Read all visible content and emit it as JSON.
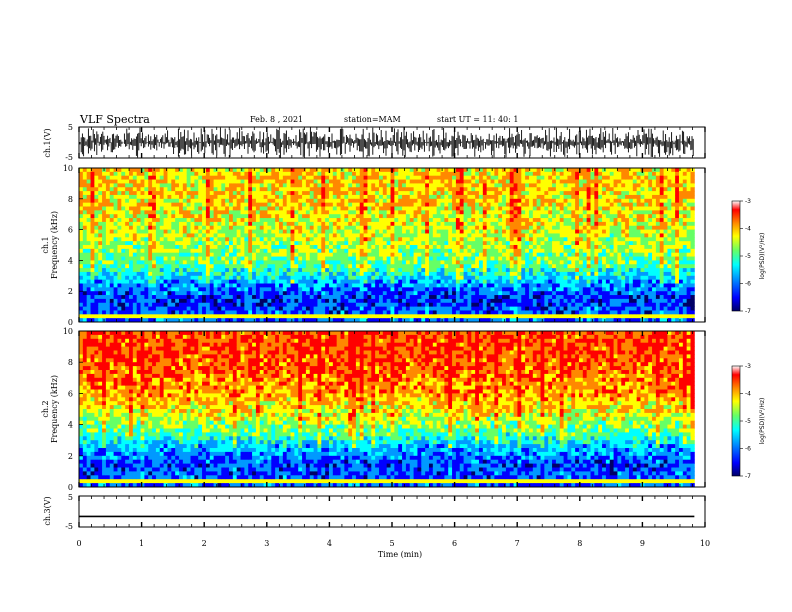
{
  "header": {
    "title": "VLF Spectra",
    "date": "Feb. 8 , 2021",
    "station": "station=MAM",
    "start": "start UT =  11: 40: 1"
  },
  "colors": {
    "scale": [
      "#000066",
      "#0000ff",
      "#0099ff",
      "#00ffff",
      "#66ff66",
      "#ffff00",
      "#ff8800",
      "#ff0000",
      "#ffffff"
    ]
  },
  "chart_data": [
    {
      "type": "line",
      "panel": "ch1-waveform",
      "ylabel": "ch.1(V)",
      "ylim": [
        -5,
        5
      ],
      "y_ticks": [
        "5",
        "-5"
      ],
      "description_values": "dense impulsive waveform between -5 and 5 V across 0-9.8 min"
    },
    {
      "type": "heatmap",
      "panel": "ch1-spectrogram",
      "ylabel": "Frequency (kHz)",
      "channel_label": "ch.1",
      "xlim": [
        0,
        10
      ],
      "ylim": [
        0,
        10
      ],
      "y_ticks": [
        "0",
        "2",
        "4",
        "6",
        "8",
        "10"
      ],
      "data_extent_min": 9.83,
      "profile": [
        {
          "f_khz": 0.5,
          "log_psd": -6.0
        },
        {
          "f_khz": 1.5,
          "log_psd": -6.2
        },
        {
          "f_khz": 2.5,
          "log_psd": -5.7
        },
        {
          "f_khz": 3.5,
          "log_psd": -5.0
        },
        {
          "f_khz": 4.5,
          "log_psd": -4.6
        },
        {
          "f_khz": 5.5,
          "log_psd": -4.5
        },
        {
          "f_khz": 6.5,
          "log_psd": -4.3
        },
        {
          "f_khz": 7.5,
          "log_psd": -4.2
        },
        {
          "f_khz": 8.5,
          "log_psd": -4.1
        },
        {
          "f_khz": 9.5,
          "log_psd": -4.1
        }
      ],
      "colorbar": {
        "label": "log(PSD)(V²/Hz)",
        "range": [
          -7,
          -3
        ],
        "ticks": [
          "-3",
          "-4",
          "-5",
          "-6",
          "-7"
        ]
      }
    },
    {
      "type": "heatmap",
      "panel": "ch2-spectrogram",
      "ylabel": "Frequency (kHz)",
      "channel_label": "ch.2",
      "xlim": [
        0,
        10
      ],
      "ylim": [
        0,
        10
      ],
      "y_ticks": [
        "0",
        "2",
        "4",
        "6",
        "8",
        "10"
      ],
      "data_extent_min": 9.83,
      "profile": [
        {
          "f_khz": 0.5,
          "log_psd": -6.0
        },
        {
          "f_khz": 1.5,
          "log_psd": -6.1
        },
        {
          "f_khz": 2.5,
          "log_psd": -5.6
        },
        {
          "f_khz": 3.5,
          "log_psd": -4.9
        },
        {
          "f_khz": 4.5,
          "log_psd": -4.4
        },
        {
          "f_khz": 5.5,
          "log_psd": -4.0
        },
        {
          "f_khz": 6.5,
          "log_psd": -3.8
        },
        {
          "f_khz": 7.5,
          "log_psd": -3.6
        },
        {
          "f_khz": 8.5,
          "log_psd": -3.5
        },
        {
          "f_khz": 9.5,
          "log_psd": -3.5
        }
      ],
      "colorbar": {
        "label": "log(PSD)(V²/Hz)",
        "range": [
          -7,
          -3
        ],
        "ticks": [
          "-3",
          "-4",
          "-5",
          "-6",
          "-7"
        ]
      }
    },
    {
      "type": "line",
      "panel": "ch3-waveform",
      "ylabel": "ch.3(V)",
      "ylim": [
        -5,
        5
      ],
      "y_ticks": [
        "5",
        "-5"
      ],
      "x": [
        0,
        9.83
      ],
      "y": [
        -1.6,
        -1.6
      ],
      "xlabel": "Time (min)",
      "xlim": [
        0,
        10
      ],
      "x_ticks": [
        "0",
        "1",
        "2",
        "3",
        "4",
        "5",
        "6",
        "7",
        "8",
        "9",
        "10"
      ]
    }
  ]
}
